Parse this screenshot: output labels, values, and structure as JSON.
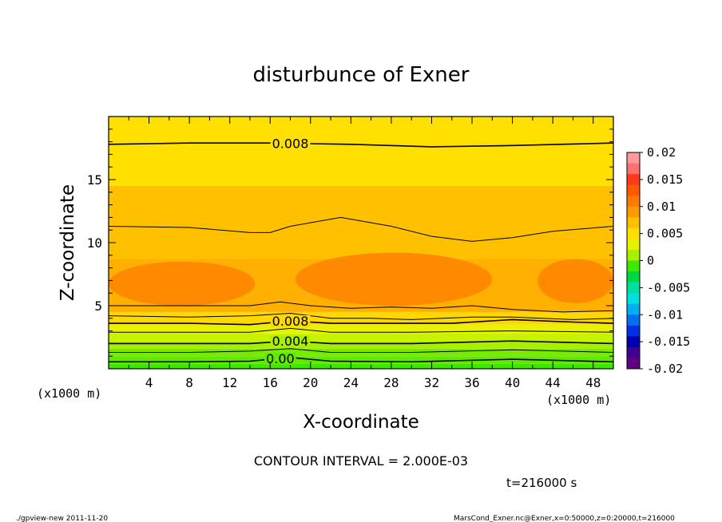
{
  "chart_data": {
    "type": "heatmap",
    "title": "disturbunce of Exner",
    "xlabel": "X-coordinate",
    "ylabel": "Z-coordinate",
    "x_unit": "(x1000 m)",
    "y_unit": "(x1000 m)",
    "xlim": [
      0,
      50
    ],
    "ylim": [
      0,
      20
    ],
    "x_ticks": [
      4,
      8,
      12,
      16,
      20,
      24,
      28,
      32,
      36,
      40,
      44,
      48
    ],
    "y_ticks": [
      5,
      10,
      15
    ],
    "colorbar": {
      "min": -0.02,
      "max": 0.02,
      "labels": [
        "0.02",
        "0.015",
        "0.01",
        "0.005",
        "0",
        "-0.005",
        "-0.01",
        "-0.015",
        "-0.02"
      ],
      "colors": [
        "#ff9a9a",
        "#ff7070",
        "#ff3a1a",
        "#ff5a00",
        "#ff7a00",
        "#ff9a00",
        "#ffc000",
        "#ffe000",
        "#e8f200",
        "#a8f000",
        "#40e800",
        "#00d840",
        "#00e0a0",
        "#00e0e0",
        "#00b0f0",
        "#0070f0",
        "#0030e0",
        "#0000b0",
        "#400090",
        "#600080"
      ]
    },
    "bands": [
      {
        "value_range": [
          0.0,
          0.002
        ],
        "zmin": 0.0,
        "zmax": 0.4,
        "color": "#40e800"
      },
      {
        "value_range": [
          0.0,
          0.002
        ],
        "zmin": 0.4,
        "zmax": 1.0,
        "color": "#60ea00"
      },
      {
        "value_range": [
          0.002,
          0.004
        ],
        "zmin": 1.0,
        "zmax": 1.6,
        "color": "#78ec00"
      },
      {
        "value_range": [
          0.002,
          0.004
        ],
        "zmin": 1.6,
        "zmax": 2.2,
        "color": "#a8f000"
      },
      {
        "value_range": [
          0.004,
          0.006
        ],
        "zmin": 2.2,
        "zmax": 2.8,
        "color": "#c8f200"
      },
      {
        "value_range": [
          0.006,
          0.008
        ],
        "zmin": 2.8,
        "zmax": 3.5,
        "color": "#e8f200"
      },
      {
        "value_range": [
          0.008,
          0.009
        ],
        "zmin": 3.5,
        "zmax": 4.5,
        "color": "#ffd800"
      },
      {
        "value_range": [
          0.009,
          0.01
        ],
        "zmin": 4.5,
        "zmax": 8.7,
        "color": "#ffb000"
      },
      {
        "value_range": [
          0.009,
          0.01
        ],
        "zmin": 8.7,
        "zmax": 14.5,
        "color": "#ffc000"
      },
      {
        "value_range": [
          0.008,
          0.009
        ],
        "zmin": 14.5,
        "zmax": 20.0,
        "color": "#ffe000"
      }
    ],
    "core_regions": [
      {
        "value_range": [
          0.01,
          0.012
        ],
        "x": [
          0,
          14.5
        ],
        "z": [
          5.0,
          8.5
        ],
        "color": "#ff8a00"
      },
      {
        "value_range": [
          0.01,
          0.012
        ],
        "x": [
          18.5,
          38.0
        ],
        "z": [
          5.0,
          9.2
        ],
        "color": "#ff8a00"
      },
      {
        "value_range": [
          0.01,
          0.012
        ],
        "x": [
          42.5,
          50
        ],
        "z": [
          5.2,
          8.7
        ],
        "color": "#ff8a00"
      }
    ],
    "contour_lines": [
      {
        "label": "0.008",
        "points": [
          [
            0,
            17.8
          ],
          [
            8,
            17.9
          ],
          [
            16,
            17.9
          ],
          [
            24,
            17.8
          ],
          [
            32,
            17.6
          ],
          [
            40,
            17.7
          ],
          [
            50,
            17.9
          ]
        ]
      },
      {
        "label": "",
        "points": [
          [
            0,
            11.3
          ],
          [
            8,
            11.2
          ],
          [
            14,
            10.8
          ],
          [
            16,
            10.8
          ],
          [
            18,
            11.3
          ],
          [
            23,
            12.0
          ],
          [
            28,
            11.3
          ],
          [
            32,
            10.5
          ],
          [
            36,
            10.1
          ],
          [
            40,
            10.4
          ],
          [
            44,
            10.9
          ],
          [
            50,
            11.3
          ]
        ]
      },
      {
        "label": "",
        "points": [
          [
            0,
            5.0
          ],
          [
            8,
            5.0
          ],
          [
            14,
            5.0
          ],
          [
            17,
            5.3
          ],
          [
            20,
            5.0
          ],
          [
            24,
            4.8
          ],
          [
            28,
            4.9
          ],
          [
            32,
            4.8
          ],
          [
            36,
            5.0
          ],
          [
            40,
            4.7
          ],
          [
            45,
            4.5
          ],
          [
            50,
            4.6
          ]
        ]
      },
      {
        "label": "",
        "points": [
          [
            0,
            4.2
          ],
          [
            8,
            4.1
          ],
          [
            14,
            4.2
          ],
          [
            18,
            4.4
          ],
          [
            22,
            4.0
          ],
          [
            26,
            4.0
          ],
          [
            30,
            3.9
          ],
          [
            36,
            4.1
          ],
          [
            40,
            4.1
          ],
          [
            46,
            3.9
          ],
          [
            50,
            4.0
          ]
        ]
      },
      {
        "label": "0.008",
        "points": [
          [
            0,
            3.6
          ],
          [
            8,
            3.6
          ],
          [
            14,
            3.5
          ],
          [
            18,
            3.8
          ],
          [
            22,
            3.6
          ],
          [
            28,
            3.6
          ],
          [
            34,
            3.6
          ],
          [
            40,
            3.9
          ],
          [
            46,
            3.7
          ],
          [
            50,
            3.6
          ]
        ]
      },
      {
        "label": "",
        "points": [
          [
            0,
            2.9
          ],
          [
            8,
            2.9
          ],
          [
            14,
            2.9
          ],
          [
            18,
            3.2
          ],
          [
            22,
            2.9
          ],
          [
            30,
            2.9
          ],
          [
            40,
            3.0
          ],
          [
            50,
            2.9
          ]
        ]
      },
      {
        "label": "0.004",
        "points": [
          [
            0,
            2.0
          ],
          [
            8,
            2.0
          ],
          [
            14,
            2.0
          ],
          [
            18,
            2.2
          ],
          [
            22,
            2.0
          ],
          [
            30,
            2.0
          ],
          [
            40,
            2.2
          ],
          [
            50,
            2.0
          ]
        ]
      },
      {
        "label": "",
        "points": [
          [
            0,
            1.3
          ],
          [
            8,
            1.3
          ],
          [
            14,
            1.4
          ],
          [
            18,
            1.6
          ],
          [
            22,
            1.3
          ],
          [
            30,
            1.3
          ],
          [
            40,
            1.5
          ],
          [
            50,
            1.3
          ]
        ]
      },
      {
        "label": "0.00",
        "points": [
          [
            0,
            0.55
          ],
          [
            8,
            0.55
          ],
          [
            14,
            0.6
          ],
          [
            18,
            0.9
          ],
          [
            22,
            0.6
          ],
          [
            30,
            0.55
          ],
          [
            40,
            0.75
          ],
          [
            50,
            0.55
          ]
        ]
      }
    ],
    "label_positions_x": [
      18,
      18,
      18,
      17
    ],
    "grid": false,
    "legend": "colorbar right"
  },
  "contour_interval": "CONTOUR INTERVAL = 2.000E-03",
  "time_text": "t=216000 s",
  "footer_left": "./gpview-new   2011-11-20",
  "footer_right": "MarsCond_Exner.nc@Exner,x=0:50000,z=0:20000,t=216000"
}
